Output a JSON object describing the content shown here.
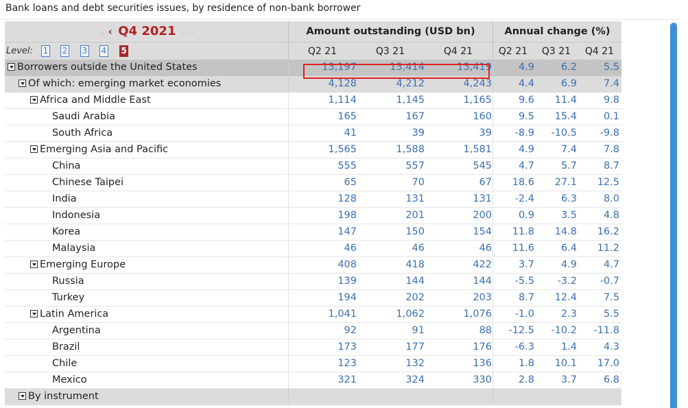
{
  "page_title": "Bank loans and debt securities issues, by residence of non-bank borrower",
  "period_selector": {
    "label": "Q4 2021",
    "prev_double": "‹‹",
    "prev": "‹",
    "next": "›",
    "next_double": "››"
  },
  "group_headers": {
    "amount": "Amount outstanding (USD bn)",
    "change": "Annual change (%)"
  },
  "level_selector": {
    "label": "Level:",
    "levels": [
      "1",
      "2",
      "3",
      "4",
      "5"
    ],
    "selected": "5"
  },
  "columns": [
    "Q2 21",
    "Q3 21",
    "Q4 21",
    "Q2 21",
    "Q3 21",
    "Q4 21"
  ],
  "rows": [
    {
      "label": "Borrowers outside the United States",
      "level": 0,
      "toggle": true,
      "values": [
        "13,197",
        "13,414",
        "13,419",
        "4.9",
        "6.2",
        "5.5"
      ]
    },
    {
      "label": "Of which: emerging market economies",
      "level": 1,
      "toggle": true,
      "values": [
        "4,128",
        "4,212",
        "4,243",
        "4.4",
        "6.9",
        "7.4"
      ]
    },
    {
      "label": "Africa and Middle East",
      "level": 2,
      "toggle": true,
      "values": [
        "1,114",
        "1,145",
        "1,165",
        "9.6",
        "11.4",
        "9.8"
      ]
    },
    {
      "label": "Saudi Arabia",
      "level": 3,
      "toggle": false,
      "values": [
        "165",
        "167",
        "160",
        "9.5",
        "15.4",
        "0.1"
      ]
    },
    {
      "label": "South Africa",
      "level": 3,
      "toggle": false,
      "values": [
        "41",
        "39",
        "39",
        "-8.9",
        "-10.5",
        "-9.8"
      ]
    },
    {
      "label": "Emerging Asia and Pacific",
      "level": 2,
      "toggle": true,
      "values": [
        "1,565",
        "1,588",
        "1,581",
        "4.9",
        "7.4",
        "7.8"
      ]
    },
    {
      "label": "China",
      "level": 3,
      "toggle": false,
      "values": [
        "555",
        "557",
        "545",
        "4.7",
        "5.7",
        "8.7"
      ]
    },
    {
      "label": "Chinese Taipei",
      "level": 3,
      "toggle": false,
      "values": [
        "65",
        "70",
        "67",
        "18.6",
        "27.1",
        "12.5"
      ]
    },
    {
      "label": "India",
      "level": 3,
      "toggle": false,
      "values": [
        "128",
        "131",
        "131",
        "-2.4",
        "6.3",
        "8.0"
      ]
    },
    {
      "label": "Indonesia",
      "level": 3,
      "toggle": false,
      "values": [
        "198",
        "201",
        "200",
        "0.9",
        "3.5",
        "4.8"
      ]
    },
    {
      "label": "Korea",
      "level": 3,
      "toggle": false,
      "values": [
        "147",
        "150",
        "154",
        "11.8",
        "14.8",
        "16.2"
      ]
    },
    {
      "label": "Malaysia",
      "level": 3,
      "toggle": false,
      "values": [
        "46",
        "46",
        "46",
        "11.6",
        "6.4",
        "11.2"
      ]
    },
    {
      "label": "Emerging Europe",
      "level": 2,
      "toggle": true,
      "values": [
        "408",
        "418",
        "422",
        "3.7",
        "4.9",
        "4.7"
      ]
    },
    {
      "label": "Russia",
      "level": 3,
      "toggle": false,
      "values": [
        "139",
        "144",
        "144",
        "-5.5",
        "-3.2",
        "-0.7"
      ]
    },
    {
      "label": "Turkey",
      "level": 3,
      "toggle": false,
      "values": [
        "194",
        "202",
        "203",
        "8.7",
        "12.4",
        "7.5"
      ]
    },
    {
      "label": "Latin America",
      "level": 2,
      "toggle": true,
      "values": [
        "1,041",
        "1,062",
        "1,076",
        "-1.0",
        "2.3",
        "5.5"
      ]
    },
    {
      "label": "Argentina",
      "level": 3,
      "toggle": false,
      "values": [
        "92",
        "91",
        "88",
        "-12.5",
        "-10.2",
        "-11.8"
      ]
    },
    {
      "label": "Brazil",
      "level": 3,
      "toggle": false,
      "values": [
        "173",
        "177",
        "176",
        "-6.3",
        "1.4",
        "4.3"
      ]
    },
    {
      "label": "Chile",
      "level": 3,
      "toggle": false,
      "values": [
        "123",
        "132",
        "136",
        "1.8",
        "10.1",
        "17.0"
      ]
    },
    {
      "label": "Mexico",
      "level": 3,
      "toggle": false,
      "values": [
        "321",
        "324",
        "330",
        "2.8",
        "3.7",
        "6.8"
      ]
    },
    {
      "label": "By instrument",
      "level": 1,
      "toggle": true,
      "values": [
        "",
        "",
        "",
        "",
        "",
        ""
      ]
    }
  ],
  "colors": {
    "value_text": "#3a6fb0",
    "period_accent": "#b52020",
    "highlight_box": "#e02020",
    "scrollbar": "#3f8fd8"
  }
}
